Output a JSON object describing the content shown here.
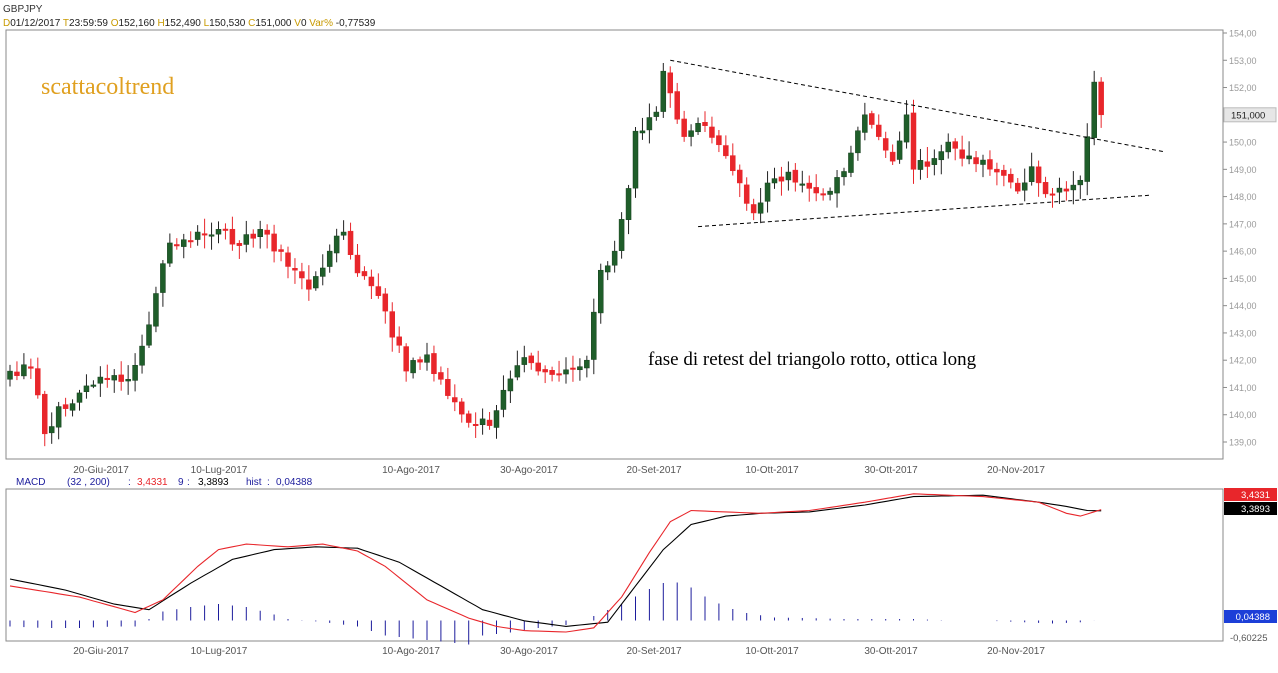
{
  "header": {
    "symbol": "GBPJPY",
    "fields": [
      {
        "key": "D",
        "value": "01/12/2017"
      },
      {
        "key": "T",
        "value": "23:59:59"
      },
      {
        "key": "O",
        "value": "152,160"
      },
      {
        "key": "H",
        "value": "152,490"
      },
      {
        "key": "L",
        "value": "150,530"
      },
      {
        "key": "C",
        "value": "151,000"
      },
      {
        "key": "V",
        "value": "0"
      },
      {
        "key": "Var%",
        "value": "-0,77539"
      }
    ]
  },
  "colors": {
    "bull": "#1f5e2a",
    "bear": "#e8262b",
    "macd_line": "#e8262b",
    "signal_line": "#000000",
    "hist": "#1c1c9c",
    "watermark": "#e0a020",
    "label_bg_red": "#e8262b",
    "label_bg_black": "#000000",
    "label_bg_blue": "#1d3fd8"
  },
  "chart_data": [
    {
      "type": "candlestick",
      "title": "GBPJPY",
      "watermark": "scattacoltrend",
      "annotation": "fase di retest del triangolo rotto, ottica long",
      "x_tick_labels": [
        "20-Giu-2017",
        "10-Lug-2017",
        "10-Ago-2017",
        "30-Ago-2017",
        "20-Set-2017",
        "10-Ott-2017",
        "30-Ott-2017",
        "20-Nov-2017"
      ],
      "y_tick_labels": [
        "139,00",
        "140,00",
        "141,00",
        "142,00",
        "143,00",
        "144,00",
        "145,00",
        "146,00",
        "147,00",
        "148,00",
        "149,00",
        "150,00",
        "151,00",
        "152,00",
        "153,00",
        "154,00"
      ],
      "ylim": [
        138.5,
        154.3
      ],
      "last_value_label": "151,000",
      "last_value": 151.0,
      "bar_count": 123,
      "pattern": "symmetrical triangle (broken upward)",
      "trendlines": [
        {
          "name": "upper",
          "from": {
            "bar": 95,
            "price": 153.0
          },
          "to": {
            "bar": 166,
            "price": 149.65
          }
        },
        {
          "name": "lower",
          "from": {
            "bar": 99,
            "price": 146.9
          },
          "to": {
            "bar": 164,
            "price": 148.05
          }
        }
      ],
      "anchor_closes": [
        {
          "bar": 0,
          "close": 141.6
        },
        {
          "bar": 3,
          "close": 141.7
        },
        {
          "bar": 5,
          "close": 139.3
        },
        {
          "bar": 7,
          "close": 140.3
        },
        {
          "bar": 10,
          "close": 140.8
        },
        {
          "bar": 14,
          "close": 141.3
        },
        {
          "bar": 17,
          "close": 141.3
        },
        {
          "bar": 20,
          "close": 143.3
        },
        {
          "bar": 23,
          "close": 146.3
        },
        {
          "bar": 27,
          "close": 146.7
        },
        {
          "bar": 30,
          "close": 146.8
        },
        {
          "bar": 33,
          "close": 146.2
        },
        {
          "bar": 36,
          "close": 146.8
        },
        {
          "bar": 38,
          "close": 146.0
        },
        {
          "bar": 41,
          "close": 145.3
        },
        {
          "bar": 43,
          "close": 144.6
        },
        {
          "bar": 46,
          "close": 146.0
        },
        {
          "bar": 48,
          "close": 146.7
        },
        {
          "bar": 50,
          "close": 145.2
        },
        {
          "bar": 54,
          "close": 143.8
        },
        {
          "bar": 57,
          "close": 141.6
        },
        {
          "bar": 60,
          "close": 142.2
        },
        {
          "bar": 63,
          "close": 140.7
        },
        {
          "bar": 67,
          "close": 139.6
        },
        {
          "bar": 69,
          "close": 139.6
        },
        {
          "bar": 71,
          "close": 140.9
        },
        {
          "bar": 74,
          "close": 142.1
        },
        {
          "bar": 76,
          "close": 141.6
        },
        {
          "bar": 79,
          "close": 141.5
        },
        {
          "bar": 81,
          "close": 141.7
        },
        {
          "bar": 83,
          "close": 142.0
        },
        {
          "bar": 85,
          "close": 145.3
        },
        {
          "bar": 87,
          "close": 146.0
        },
        {
          "bar": 89,
          "close": 148.3
        },
        {
          "bar": 90,
          "close": 150.4
        },
        {
          "bar": 93,
          "close": 151.1
        },
        {
          "bar": 94,
          "close": 152.6
        },
        {
          "bar": 95,
          "close": 151.8
        },
        {
          "bar": 97,
          "close": 150.2
        },
        {
          "bar": 100,
          "close": 150.6
        },
        {
          "bar": 102,
          "close": 149.9
        },
        {
          "bar": 105,
          "close": 148.5
        },
        {
          "bar": 107,
          "close": 147.4
        },
        {
          "bar": 109,
          "close": 148.5
        },
        {
          "bar": 112,
          "close": 148.9
        },
        {
          "bar": 115,
          "close": 148.3
        },
        {
          "bar": 118,
          "close": 148.2
        },
        {
          "bar": 121,
          "close": 149.6
        },
        {
          "bar": 123,
          "close": 151.0
        },
        {
          "bar": 125,
          "close": 150.2
        },
        {
          "bar": 127,
          "close": 149.3
        },
        {
          "bar": 129,
          "close": 151.0
        },
        {
          "bar": 130,
          "close": 149.0
        },
        {
          "bar": 133,
          "close": 149.4
        },
        {
          "bar": 135,
          "close": 150.0
        },
        {
          "bar": 137,
          "close": 149.4
        },
        {
          "bar": 139,
          "close": 149.2
        },
        {
          "bar": 142,
          "close": 148.9
        },
        {
          "bar": 145,
          "close": 148.2
        },
        {
          "bar": 147,
          "close": 149.1
        },
        {
          "bar": 149,
          "close": 148.1
        },
        {
          "bar": 152,
          "close": 148.2
        },
        {
          "bar": 154,
          "close": 148.6
        },
        {
          "bar": 155,
          "close": 150.2
        },
        {
          "bar": 156,
          "close": 152.2
        },
        {
          "bar": 157,
          "close": 151.0
        }
      ]
    },
    {
      "type": "line",
      "title": "MACD",
      "params_label": "(32 , 200)",
      "macd_value_label": "3,4331",
      "signal_period_label": "9",
      "signal_value_label": "3,3893",
      "hist_label": "hist",
      "hist_value_label": "0,04388",
      "right_labels": {
        "macd": "3,4331",
        "signal": "3,3893",
        "hist": "0,04388",
        "bottom": "-0,60225"
      },
      "ylim": [
        -1.2,
        4.1
      ],
      "series": [
        {
          "name": "MACD",
          "anchors": [
            [
              0,
              0.7
            ],
            [
              10,
              0.3
            ],
            [
              18,
              -0.25
            ],
            [
              22,
              0.2
            ],
            [
              27,
              1.4
            ],
            [
              30,
              2.0
            ],
            [
              34,
              2.2
            ],
            [
              40,
              2.1
            ],
            [
              45,
              2.2
            ],
            [
              50,
              1.95
            ],
            [
              54,
              1.4
            ],
            [
              60,
              0.2
            ],
            [
              66,
              -0.45
            ],
            [
              70,
              -0.75
            ],
            [
              74,
              -0.9
            ],
            [
              80,
              -0.95
            ],
            [
              84,
              -0.8
            ],
            [
              88,
              0.3
            ],
            [
              92,
              1.9
            ],
            [
              95,
              3.0
            ],
            [
              98,
              3.4
            ],
            [
              103,
              3.35
            ],
            [
              108,
              3.3
            ],
            [
              115,
              3.4
            ],
            [
              123,
              3.7
            ],
            [
              130,
              4.0
            ],
            [
              140,
              3.9
            ],
            [
              148,
              3.7
            ],
            [
              152,
              3.3
            ],
            [
              154,
              3.2
            ],
            [
              157,
              3.4331
            ]
          ]
        },
        {
          "name": "signal",
          "anchors": [
            [
              0,
              0.95
            ],
            [
              8,
              0.55
            ],
            [
              15,
              0.05
            ],
            [
              20,
              -0.15
            ],
            [
              26,
              0.8
            ],
            [
              32,
              1.65
            ],
            [
              38,
              2.0
            ],
            [
              44,
              2.1
            ],
            [
              50,
              2.05
            ],
            [
              56,
              1.55
            ],
            [
              62,
              0.7
            ],
            [
              68,
              -0.15
            ],
            [
              74,
              -0.55
            ],
            [
              80,
              -0.75
            ],
            [
              86,
              -0.6
            ],
            [
              90,
              0.7
            ],
            [
              94,
              2.0
            ],
            [
              98,
              2.9
            ],
            [
              103,
              3.2
            ],
            [
              108,
              3.3
            ],
            [
              115,
              3.35
            ],
            [
              123,
              3.6
            ],
            [
              130,
              3.9
            ],
            [
              140,
              3.95
            ],
            [
              148,
              3.7
            ],
            [
              152,
              3.55
            ],
            [
              155,
              3.4
            ],
            [
              157,
              3.3893
            ]
          ]
        },
        {
          "name": "hist",
          "anchors": [
            [
              0,
              -0.2
            ],
            [
              5,
              -0.25
            ],
            [
              10,
              -0.25
            ],
            [
              15,
              -0.2
            ],
            [
              18,
              -0.2
            ],
            [
              22,
              0.3
            ],
            [
              26,
              0.45
            ],
            [
              30,
              0.55
            ],
            [
              34,
              0.45
            ],
            [
              38,
              0.2
            ],
            [
              40,
              0.05
            ],
            [
              45,
              -0.05
            ],
            [
              50,
              -0.2
            ],
            [
              54,
              -0.5
            ],
            [
              58,
              -0.6
            ],
            [
              62,
              -0.7
            ],
            [
              66,
              -0.8
            ],
            [
              68,
              -0.5
            ],
            [
              72,
              -0.4
            ],
            [
              76,
              -0.25
            ],
            [
              80,
              -0.15
            ],
            [
              84,
              0.15
            ],
            [
              88,
              0.55
            ],
            [
              92,
              1.05
            ],
            [
              95,
              1.35
            ],
            [
              98,
              1.1
            ],
            [
              100,
              0.8
            ],
            [
              103,
              0.45
            ],
            [
              106,
              0.25
            ],
            [
              110,
              0.1
            ],
            [
              115,
              0.08
            ],
            [
              120,
              0.05
            ],
            [
              125,
              0.05
            ],
            [
              130,
              0.05
            ],
            [
              135,
              0.0
            ],
            [
              140,
              0.0
            ],
            [
              145,
              -0.05
            ],
            [
              150,
              -0.1
            ],
            [
              155,
              -0.05
            ],
            [
              157,
              0.04388
            ]
          ]
        }
      ],
      "x_tick_labels": [
        "20-Giu-2017",
        "10-Lug-2017",
        "10-Ago-2017",
        "30-Ago-2017",
        "20-Set-2017",
        "10-Ott-2017",
        "30-Ott-2017",
        "20-Nov-2017"
      ]
    }
  ]
}
